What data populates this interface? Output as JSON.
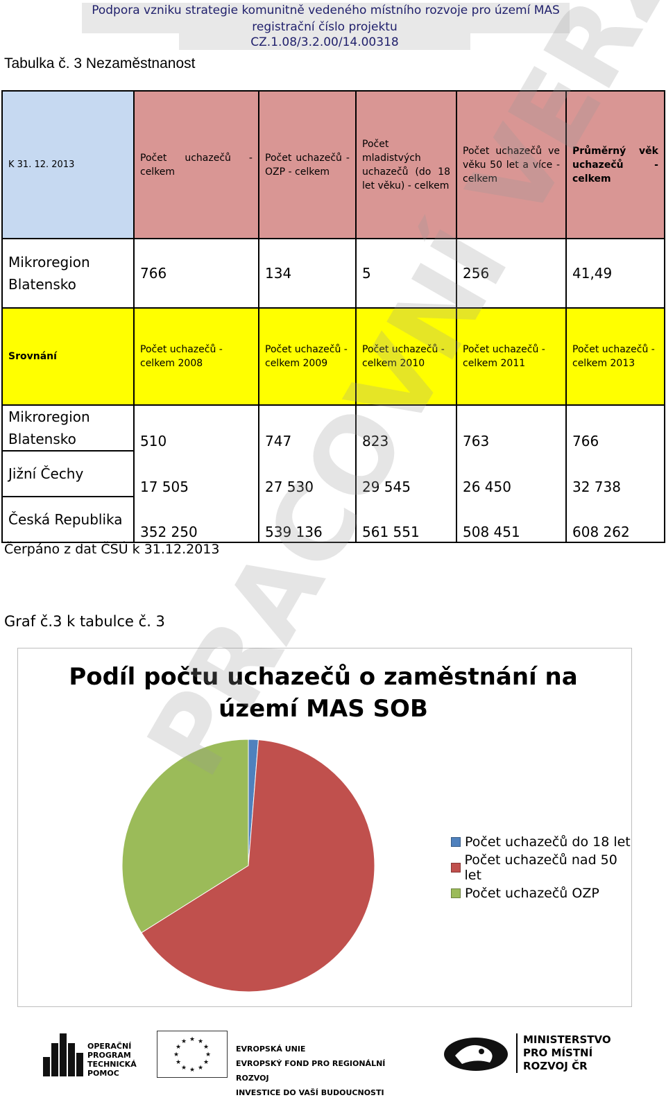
{
  "header": {
    "line1": "Podpora vzniku strategie komunitně vedeného místního rozvoje pro území MAS SOB",
    "line2": "registrační číslo projektu CZ.1.08/3.2.00/14.00318"
  },
  "table_caption": "Tabulka č. 3 Nezaměstnanost",
  "table": {
    "corner": "K 31. 12. 2013",
    "headers": [
      "Počet uchazečů - celkem",
      "Počet uchazečů - OZP - celkem",
      "Počet mladistvých uchazečů (do 18 let věku) - celkem",
      "Počet uchazečů ve věku 50 let a více - celkem",
      "Průměrný věk uchazečů - celkem"
    ],
    "summary_row": {
      "name": "Mikroregion Blatensko",
      "values": [
        "766",
        "134",
        "5",
        "256",
        "41,49"
      ]
    },
    "compare_label": "Srovnání",
    "compare_headers": [
      "Počet uchazečů - celkem 2008",
      "Počet uchazečů - celkem 2009",
      "Počet uchazečů - celkem 2010",
      "Počet uchazečů - celkem 2011",
      "Počet uchazečů - celkem 2013"
    ],
    "compare_rows": [
      {
        "name": "Mikroregion Blatensko",
        "values": [
          "510",
          "747",
          "823",
          "763",
          "766"
        ]
      },
      {
        "name": "Jižní Čechy",
        "values": [
          "17 505",
          "27 530",
          "29 545",
          "26 450",
          "32 738"
        ]
      },
      {
        "name": "Česká Republika",
        "values": [
          "352 250",
          "539 136",
          "561 551",
          "508 451",
          "608 262"
        ]
      }
    ]
  },
  "source_note": "Čerpáno z dat ČSÚ k 31.12.2013",
  "chart_caption": "Graf č.3 k tabulce č. 3",
  "chart_data": {
    "type": "pie",
    "title": "Podíl počtu uchazečů o zaměstnání na území MAS SOB",
    "categories": [
      "Počet uchazečů do 18 let",
      "Počet uchazečů nad 50 let",
      "Počet uchazečů OZP"
    ],
    "values": [
      5,
      256,
      134
    ],
    "colors": [
      "#4f81bd",
      "#c0504d",
      "#9bbb59"
    ],
    "legend_position": "right"
  },
  "footer": {
    "opt_text": [
      "OPERAČNÍ",
      "PROGRAM",
      "TECHNICKÁ",
      "POMOC"
    ],
    "eu_text": [
      "EVROPSKÁ UNIE",
      "EVROPSKÝ FOND PRO REGIONÁLNÍ ROZVOJ",
      "INVESTICE DO VAŠÍ BUDOUCNOSTI"
    ],
    "mmr_text": [
      "MINISTERSTVO",
      "PRO MÍSTNÍ",
      "ROZVOJ ČR"
    ]
  },
  "watermark": "PRACOVNÍ VERZE"
}
